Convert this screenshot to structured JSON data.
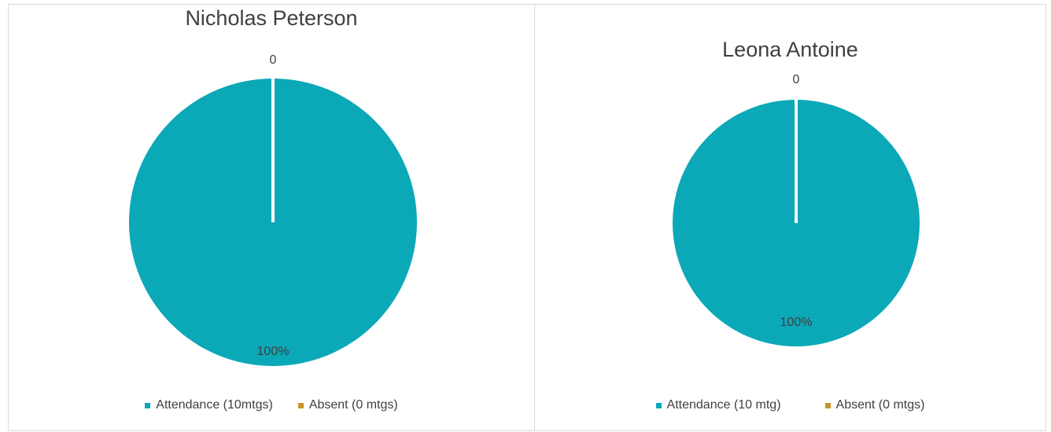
{
  "colors": {
    "attendance": "#0ba8b8",
    "absent": "#c8952a",
    "slice_edge": "#ffffff",
    "label": "#404040"
  },
  "chart_data": [
    {
      "type": "pie",
      "title": "Nicholas Peterson",
      "categories": [
        "Attendance (10mtgs)",
        "Absent (0 mtgs)"
      ],
      "values": [
        10,
        0
      ],
      "data_labels": [
        "100%",
        "0"
      ],
      "legend": "bottom"
    },
    {
      "type": "pie",
      "title": "Leona Antoine",
      "categories": [
        "Attendance (10 mtg)",
        "Absent (0 mtgs)"
      ],
      "values": [
        10,
        0
      ],
      "data_labels": [
        "100%",
        "0"
      ],
      "legend": "bottom"
    }
  ]
}
